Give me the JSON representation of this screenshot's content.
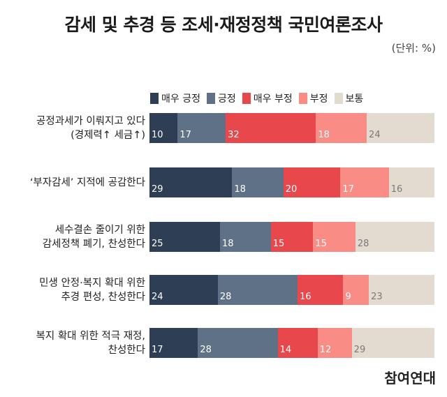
{
  "title": "감세 및 추경 등 조세·재정정책 국민여론조사",
  "unit": "(단위: %)",
  "brand": "참여연대",
  "colors": {
    "매우 긍정": "#2e3e55",
    "긍정": "#5f7186",
    "매우 부정": "#e8474b",
    "부정": "#f98d86",
    "보통": "#e3dbcf"
  },
  "chart_data": {
    "type": "bar",
    "orientation": "horizontal",
    "stacked": true,
    "title": "감세 및 추경 등 조세·재정정책 국민여론조사",
    "unit": "(단위: %)",
    "legend_position": "top",
    "categories": [
      [
        "공정과세가 이뤄지고 있다",
        "(경제력↑ 세금↑)"
      ],
      [
        "‘부자감세’ 지적에 공감한다"
      ],
      [
        "세수결손 줄이기 위한",
        "감세정책 폐기, 찬성한다"
      ],
      [
        "민생 안정·복지 확대 위한",
        "추경 편성, 찬성한다"
      ],
      [
        "복지 확대 위한 적극 재정,",
        "찬성한다"
      ]
    ],
    "series": [
      {
        "name": "매우 긍정",
        "values": [
          10,
          29,
          25,
          24,
          17
        ]
      },
      {
        "name": "긍정",
        "values": [
          17,
          18,
          18,
          28,
          28
        ]
      },
      {
        "name": "매우 부정",
        "values": [
          32,
          20,
          15,
          16,
          14
        ]
      },
      {
        "name": "부정",
        "values": [
          18,
          17,
          15,
          9,
          12
        ]
      },
      {
        "name": "보통",
        "values": [
          24,
          16,
          28,
          23,
          29
        ]
      }
    ]
  }
}
